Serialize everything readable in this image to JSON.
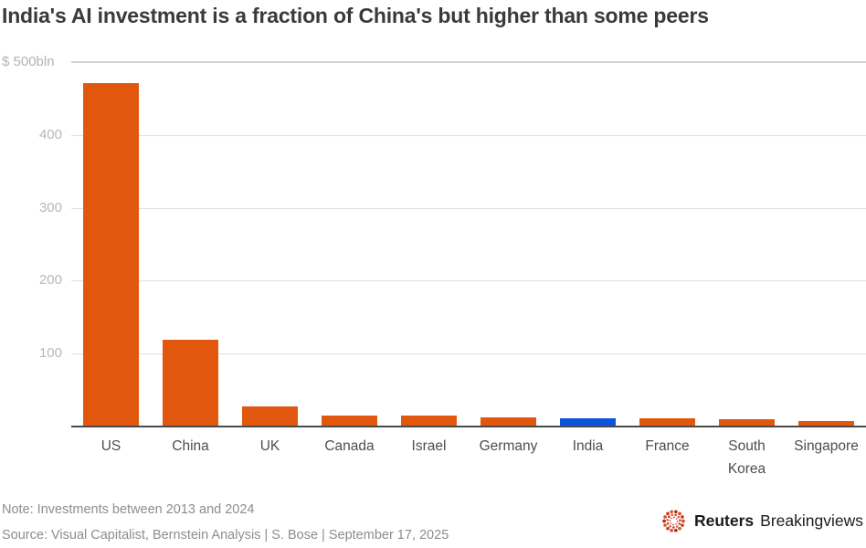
{
  "title": "India's AI investment is a fraction of China's but higher than some peers",
  "chart_data": {
    "type": "bar",
    "categories": [
      "US",
      "China",
      "UK",
      "Canada",
      "Israel",
      "Germany",
      "India",
      "France",
      "South Korea",
      "Singapore"
    ],
    "display_categories": [
      "US",
      "China",
      "UK",
      "Canada",
      "Israel",
      "Germany",
      "India",
      "France",
      "South\nKorea",
      "Singapore"
    ],
    "values": [
      471,
      119,
      28,
      15,
      15,
      13,
      11,
      11,
      10,
      7
    ],
    "unit_label": "$ 500bln",
    "ylabel": "$ bln",
    "xlabel": "",
    "ylim": [
      0,
      500
    ],
    "yticks": [
      100,
      200,
      300,
      400,
      500
    ],
    "grid": "horizontal",
    "legend": "none",
    "bar_color": "#e2570e",
    "highlight_index": 6,
    "highlight_color": "#0e53de"
  },
  "footer": {
    "note": "Note: Investments between 2013 and 2024",
    "source": "Source: Visual Capitalist, Bernstein Analysis | S. Bose | September 17, 2025"
  },
  "logo": {
    "brand": "Reuters",
    "suffix": "Breakingviews",
    "emblem": "reuters-dotted-circle",
    "emblem_colors": [
      "#e8481f",
      "#c43b20",
      "#d95a1e",
      "#a83226"
    ]
  }
}
